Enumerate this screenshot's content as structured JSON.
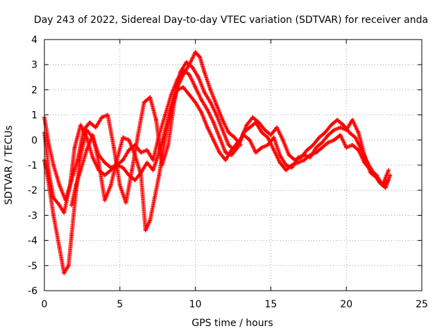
{
  "chart_data": {
    "type": "scatter",
    "title": "Day 243 of 2022, Sidereal Day-to-day VTEC variation (SDTVAR) for receiver anda",
    "xlabel": "GPS time / hours",
    "ylabel": "SDTVAR / TECUs",
    "xlim": [
      0,
      25
    ],
    "ylim": [
      -6,
      4
    ],
    "xticks": [
      0,
      5,
      10,
      15,
      20,
      25
    ],
    "yticks": [
      -6,
      -5,
      -4,
      -3,
      -2,
      -1,
      0,
      1,
      2,
      3,
      4
    ],
    "grid": true,
    "marker": "+",
    "color": "#ff0000",
    "series": [
      {
        "name": "trace-1",
        "x": [
          0.0,
          0.3,
          0.6,
          1.0,
          1.3,
          1.7,
          2.0,
          2.4,
          2.8,
          3.2,
          3.6,
          4.0,
          4.4,
          4.8,
          5.2,
          5.6,
          6.0,
          6.4,
          6.8,
          7.2,
          7.6,
          8.0,
          8.4,
          8.8,
          9.2,
          9.6,
          10.0,
          10.4,
          10.8,
          11.2,
          11.6,
          12.0,
          12.4,
          12.8,
          13.2,
          13.6,
          14.0,
          14.4,
          14.8,
          15.2,
          15.6,
          16.0,
          16.4,
          16.8,
          17.2,
          17.6,
          18.0,
          18.4,
          18.8,
          19.2,
          19.6,
          20.0,
          20.4,
          20.8,
          21.2,
          21.6,
          22.0,
          22.4,
          22.8
        ],
        "y": [
          0.3,
          -1.3,
          -2.3,
          -2.6,
          -2.9,
          -1.8,
          -0.3,
          0.6,
          0.1,
          -0.7,
          -1.2,
          -1.4,
          -1.2,
          -1.0,
          -1.1,
          -1.4,
          -1.6,
          -1.3,
          -0.9,
          -1.2,
          -0.5,
          0.4,
          1.3,
          2.0,
          2.1,
          1.8,
          1.5,
          1.1,
          0.5,
          0.0,
          -0.5,
          -0.8,
          -0.4,
          -0.1,
          0.2,
          0.0,
          -0.5,
          -0.3,
          -0.2,
          0.1,
          -0.6,
          -1.0,
          -1.1,
          -0.7,
          -0.6,
          -0.7,
          -0.3,
          -0.1,
          0.2,
          0.4,
          0.5,
          0.4,
          0.8,
          0.3,
          -0.6,
          -1.3,
          -1.5,
          -1.8,
          -1.6
        ]
      },
      {
        "name": "trace-2",
        "x": [
          0.0,
          0.3,
          0.6,
          1.0,
          1.3,
          1.6,
          1.8,
          2.1,
          2.4,
          2.8,
          3.2,
          3.6,
          4.0,
          4.4,
          4.8,
          5.2,
          5.6,
          6.0,
          6.4,
          6.8,
          7.2,
          7.6,
          8.0,
          8.4,
          8.8,
          9.2,
          9.6,
          10.0,
          10.4,
          10.8,
          11.2,
          11.6,
          12.0,
          12.4,
          12.8,
          13.2,
          13.6,
          14.0,
          14.4,
          14.8,
          15.2,
          15.6,
          16.0,
          16.4,
          16.8,
          17.2,
          17.6,
          18.0,
          18.4,
          18.8,
          19.2,
          19.6,
          20.0,
          20.4,
          20.8,
          21.2,
          21.6,
          22.0,
          22.4,
          22.8
        ],
        "y": [
          -0.8,
          -1.8,
          -3.0,
          -4.3,
          -5.3,
          -5.0,
          -3.8,
          -2.0,
          -0.6,
          0.4,
          0.1,
          -0.6,
          -0.9,
          -1.1,
          -1.0,
          -0.8,
          -0.4,
          -0.2,
          -0.5,
          -0.4,
          -0.8,
          0.2,
          1.0,
          1.8,
          2.4,
          2.8,
          2.6,
          2.1,
          1.6,
          1.2,
          0.7,
          0.1,
          -0.5,
          -0.6,
          -0.3,
          0.3,
          0.5,
          0.7,
          0.3,
          0.1,
          -0.4,
          -0.9,
          -1.2,
          -1.0,
          -0.9,
          -0.8,
          -0.6,
          -0.5,
          -0.3,
          -0.1,
          0.0,
          0.2,
          -0.3,
          -0.2,
          -0.4,
          -0.9,
          -1.2,
          -1.4,
          -1.8,
          -1.2
        ]
      },
      {
        "name": "trace-3",
        "x": [
          0.0,
          0.3,
          0.6,
          1.0,
          1.4,
          1.8,
          2.2,
          2.6,
          3.0,
          3.4,
          3.8,
          4.2,
          4.6,
          5.0,
          5.4,
          5.8,
          6.2,
          6.6,
          7.0,
          7.4,
          7.8,
          8.2,
          8.6,
          9.0,
          9.4,
          9.8,
          10.2,
          10.6,
          11.0,
          11.4,
          11.8,
          12.2,
          12.6,
          13.0,
          13.4,
          13.8,
          14.2,
          14.6,
          15.0,
          15.4,
          15.8,
          16.2,
          16.6,
          17.0,
          17.4,
          17.8,
          18.2,
          18.6,
          19.0,
          19.4,
          19.8,
          20.2,
          20.6,
          21.0,
          21.4,
          21.8,
          22.2,
          22.6,
          22.9
        ],
        "y": [
          0.9,
          -0.2,
          -1.0,
          -1.8,
          -2.4,
          -1.6,
          -0.8,
          0.4,
          0.7,
          0.5,
          0.9,
          1.0,
          -0.3,
          -1.8,
          -2.5,
          -1.2,
          0.2,
          1.5,
          1.7,
          0.8,
          -1.0,
          -0.2,
          1.5,
          2.7,
          3.1,
          2.9,
          2.5,
          1.9,
          1.5,
          1.0,
          0.4,
          -0.2,
          -0.4,
          0.0,
          0.6,
          0.9,
          0.7,
          0.4,
          0.2,
          0.5,
          0.0,
          -0.6,
          -0.8,
          -0.7,
          -0.4,
          -0.2,
          0.1,
          0.3,
          0.6,
          0.8,
          0.6,
          0.3,
          0.1,
          -0.4,
          -0.9,
          -1.3,
          -1.7,
          -1.9,
          -1.4
        ]
      },
      {
        "name": "trace-4",
        "x": [
          1.8,
          2.1,
          2.4,
          2.8,
          3.2,
          3.6,
          4.0,
          4.4,
          4.8,
          5.2,
          5.6,
          6.0,
          6.4,
          6.7,
          7.0,
          7.3,
          7.6,
          8.0,
          8.4,
          8.8,
          9.2,
          9.6,
          10.0,
          10.3,
          10.6,
          11.0,
          11.4,
          11.8,
          12.2,
          12.6,
          13.0
        ],
        "y": [
          -2.6,
          -1.8,
          -1.2,
          -0.4,
          0.2,
          -0.9,
          -2.4,
          -1.8,
          -0.8,
          0.1,
          0.0,
          -0.6,
          -1.4,
          -3.6,
          -3.2,
          -2.3,
          -1.4,
          0.1,
          1.2,
          2.1,
          2.6,
          3.0,
          3.5,
          3.3,
          2.7,
          2.0,
          1.4,
          0.8,
          0.3,
          0.1,
          -0.2
        ]
      }
    ]
  }
}
